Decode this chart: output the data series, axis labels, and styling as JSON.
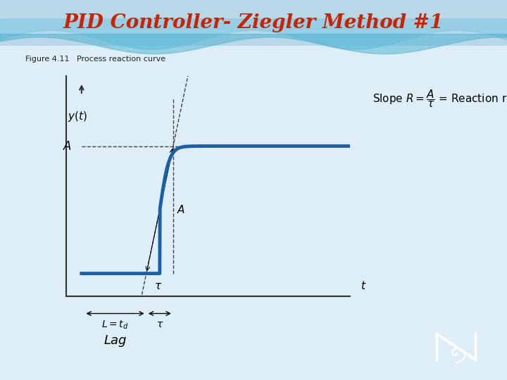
{
  "title": "PID Controller- Ziegler Method #1",
  "title_color": "#cc2200",
  "title_fontsize": 20,
  "fig_caption": "Figure 4.11   Process reaction curve",
  "bg_main_color": "#ddeef6",
  "curve_color": "#1a5fa8",
  "curve_linewidth": 3.5,
  "axis_color": "#333333",
  "dashed_color": "#444444",
  "L": 3.5,
  "tau": 1.2,
  "A": 1.0,
  "t_total": 12.0,
  "logo_color": "#8B5A2B"
}
